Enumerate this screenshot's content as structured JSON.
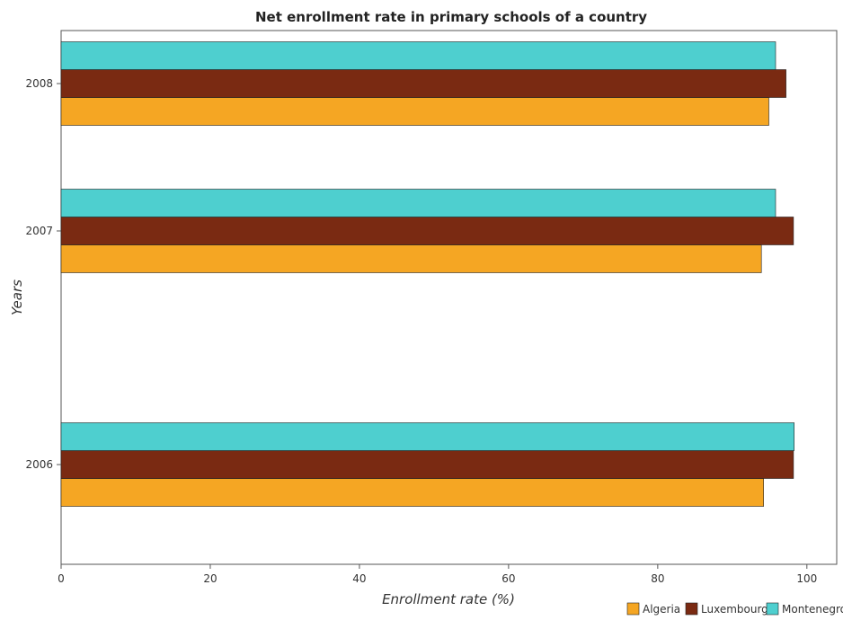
{
  "chart_data": {
    "type": "bar",
    "orientation": "horizontal",
    "title": "Net enrollment rate in primary schools of a country",
    "xlabel": "Enrollment rate (%)",
    "ylabel": "Years",
    "categories": [
      "2006",
      "2007",
      "2008"
    ],
    "xlim": [
      0,
      104
    ],
    "xticks": [
      0,
      20,
      40,
      60,
      80,
      100
    ],
    "series": [
      {
        "name": "Algeria",
        "color": "#f5a623",
        "values": [
          94.2,
          93.9,
          94.9
        ]
      },
      {
        "name": "Luxembourg",
        "color": "#7a2a12",
        "values": [
          98.2,
          98.2,
          97.2
        ]
      },
      {
        "name": "Montenegro",
        "color": "#4ecfcf",
        "values": [
          98.3,
          95.8,
          95.8
        ]
      }
    ],
    "legend_position": "bottom-right",
    "grid": false
  }
}
